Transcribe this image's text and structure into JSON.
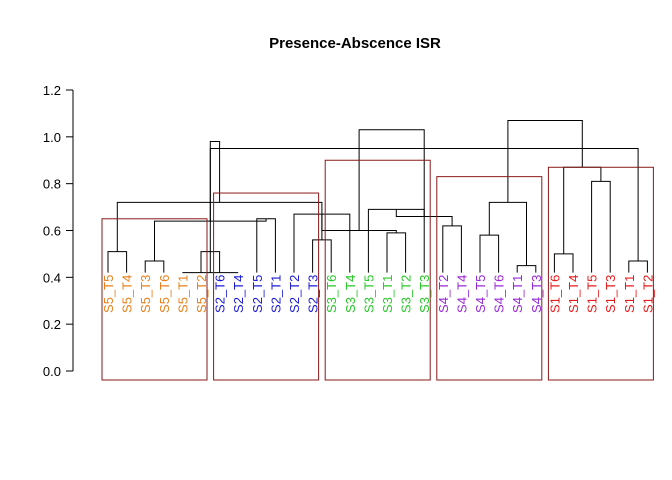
{
  "chart_data": {
    "type": "dendrogram",
    "title": "Presence-Abscence  ISR",
    "ylim": [
      0,
      1.2
    ],
    "yticks": [
      "0.0",
      "0.2",
      "0.4",
      "0.6",
      "0.8",
      "1.0",
      "1.2"
    ],
    "ytick_values": [
      0,
      0.2,
      0.4,
      0.6,
      0.8,
      1.0,
      1.2
    ],
    "box_color": "#8b1a1a",
    "line_color": "#000000",
    "clusters": [
      {
        "name": "S5",
        "color": "#e8801a",
        "leaves": [
          "S5_T5",
          "S5_T4",
          "S5_T3",
          "S5_T6",
          "S5_T1",
          "S5_T2"
        ],
        "box_top": 0.65
      },
      {
        "name": "S2",
        "color": "#1a1ad8",
        "leaves": [
          "S2_T6",
          "S2_T4",
          "S2_T5",
          "S2_T1",
          "S2_T2",
          "S2_T3"
        ],
        "box_top": 0.76
      },
      {
        "name": "S3",
        "color": "#28c828",
        "leaves": [
          "S3_T6",
          "S3_T4",
          "S3_T5",
          "S3_T1",
          "S3_T2",
          "S3_T3"
        ],
        "box_top": 0.9
      },
      {
        "name": "S4",
        "color": "#9a28d8",
        "leaves": [
          "S4_T2",
          "S4_T4",
          "S4_T5",
          "S4_T6",
          "S4_T1",
          "S4_T3"
        ],
        "box_top": 0.83
      },
      {
        "name": "S1",
        "color": "#e81a1a",
        "leaves": [
          "S1_T6",
          "S1_T4",
          "S1_T5",
          "S1_T3",
          "S1_T1",
          "S1_T2"
        ],
        "box_top": 0.87
      }
    ],
    "merges": [
      [
        0,
        1,
        0.51
      ],
      [
        2,
        3,
        0.47
      ],
      [
        4,
        7,
        0.42
      ],
      [
        5,
        6,
        0.51
      ],
      [
        8,
        9,
        0.65
      ],
      [
        11,
        12,
        0.56
      ],
      [
        10,
        13,
        0.67
      ],
      [
        15,
        16,
        0.59
      ],
      [
        14,
        17,
        0.69
      ],
      [
        18,
        19,
        0.62
      ],
      [
        20,
        21,
        0.58
      ],
      [
        22,
        23,
        0.45
      ],
      [
        24,
        25,
        0.5
      ],
      [
        26,
        27,
        0.81
      ],
      [
        28,
        29,
        0.47
      ],
      [
        32,
        33,
        0.56
      ],
      [
        31,
        34,
        0.64
      ],
      [
        30,
        35,
        0.72
      ],
      [
        36,
        37,
        0.6
      ],
      [
        38,
        39,
        0.66
      ],
      [
        40,
        41,
        0.72
      ],
      [
        42,
        43,
        0.87
      ],
      [
        44,
        45,
        0.95
      ],
      [
        46,
        47,
        0.98
      ],
      [
        48,
        49,
        1.03
      ],
      [
        50,
        51,
        1.07
      ]
    ]
  }
}
